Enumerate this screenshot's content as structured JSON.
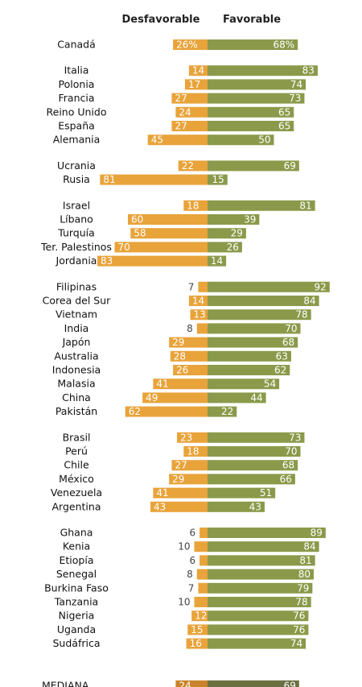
{
  "chart_data": {
    "type": "bar",
    "headers": {
      "unfavorable": "Desfavorable",
      "favorable": "Favorable"
    },
    "colors": {
      "unfavorable": "#e8a33a",
      "favorable": "#8a9a4a",
      "median_unfavorable": "#c9832a",
      "median_favorable": "#6b7040"
    },
    "groups": [
      {
        "rows": [
          {
            "label": "Canadá",
            "unfavorable": 26,
            "favorable": 68,
            "unfavorable_label": "26%",
            "favorable_label": "68%"
          }
        ]
      },
      {
        "rows": [
          {
            "label": "Italia",
            "unfavorable": 14,
            "favorable": 83
          },
          {
            "label": "Polonia",
            "unfavorable": 17,
            "favorable": 74
          },
          {
            "label": "Francia",
            "unfavorable": 27,
            "favorable": 73
          },
          {
            "label": "Reino Unido",
            "unfavorable": 24,
            "favorable": 65
          },
          {
            "label": "España",
            "unfavorable": 27,
            "favorable": 65
          },
          {
            "label": "Alemania",
            "unfavorable": 45,
            "favorable": 50
          }
        ]
      },
      {
        "rows": [
          {
            "label": "Ucrania",
            "unfavorable": 22,
            "favorable": 69
          },
          {
            "label": "Rusia",
            "unfavorable": 81,
            "favorable": 15
          }
        ]
      },
      {
        "rows": [
          {
            "label": "Israel",
            "unfavorable": 18,
            "favorable": 81
          },
          {
            "label": "Líbano",
            "unfavorable": 60,
            "favorable": 39
          },
          {
            "label": "Turquía",
            "unfavorable": 58,
            "favorable": 29
          },
          {
            "label": "Ter. Palestinos",
            "unfavorable": 70,
            "favorable": 26
          },
          {
            "label": "Jordania",
            "unfavorable": 83,
            "favorable": 14
          }
        ]
      },
      {
        "rows": [
          {
            "label": "Filipinas",
            "unfavorable": 7,
            "favorable": 92
          },
          {
            "label": "Corea del Sur",
            "unfavorable": 14,
            "favorable": 84
          },
          {
            "label": "Vietnam",
            "unfavorable": 13,
            "favorable": 78
          },
          {
            "label": "India",
            "unfavorable": 8,
            "favorable": 70
          },
          {
            "label": "Japón",
            "unfavorable": 29,
            "favorable": 68
          },
          {
            "label": "Australia",
            "unfavorable": 28,
            "favorable": 63
          },
          {
            "label": "Indonesia",
            "unfavorable": 26,
            "favorable": 62
          },
          {
            "label": "Malasia",
            "unfavorable": 41,
            "favorable": 54
          },
          {
            "label": "China",
            "unfavorable": 49,
            "favorable": 44
          },
          {
            "label": "Pakistán",
            "unfavorable": 62,
            "favorable": 22
          }
        ]
      },
      {
        "rows": [
          {
            "label": "Brasil",
            "unfavorable": 23,
            "favorable": 73
          },
          {
            "label": "Perú",
            "unfavorable": 18,
            "favorable": 70
          },
          {
            "label": "Chile",
            "unfavorable": 27,
            "favorable": 68
          },
          {
            "label": "México",
            "unfavorable": 29,
            "favorable": 66
          },
          {
            "label": "Venezuela",
            "unfavorable": 41,
            "favorable": 51
          },
          {
            "label": "Argentina",
            "unfavorable": 43,
            "favorable": 43
          }
        ]
      },
      {
        "rows": [
          {
            "label": "Ghana",
            "unfavorable": 6,
            "favorable": 89
          },
          {
            "label": "Kenia",
            "unfavorable": 10,
            "favorable": 84
          },
          {
            "label": "Etiopía",
            "unfavorable": 6,
            "favorable": 81
          },
          {
            "label": "Senegal",
            "unfavorable": 8,
            "favorable": 80
          },
          {
            "label": "Burkina Faso",
            "unfavorable": 7,
            "favorable": 79
          },
          {
            "label": "Tanzania",
            "unfavorable": 10,
            "favorable": 78
          },
          {
            "label": "Nigeria",
            "unfavorable": 12,
            "favorable": 76
          },
          {
            "label": "Uganda",
            "unfavorable": 15,
            "favorable": 76
          },
          {
            "label": "Sudáfrica",
            "unfavorable": 16,
            "favorable": 74
          }
        ]
      },
      {
        "median": true,
        "rows": [
          {
            "label": "MEDIANA",
            "unfavorable": 24,
            "favorable": 69
          }
        ]
      }
    ]
  }
}
